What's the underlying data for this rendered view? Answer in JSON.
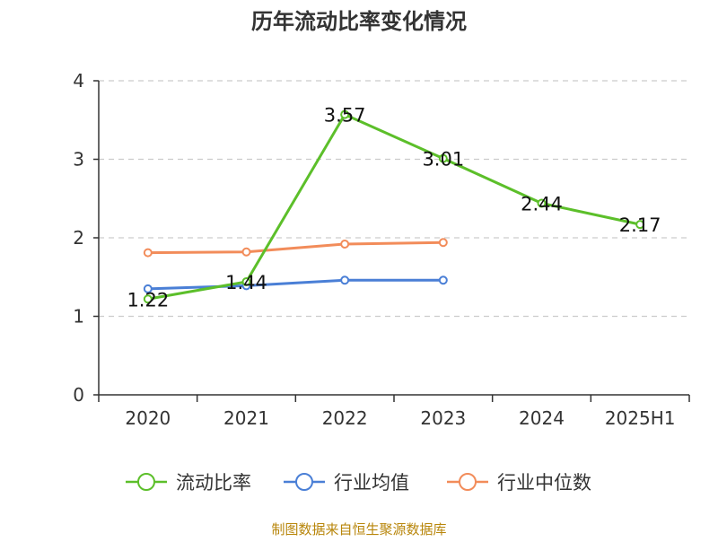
{
  "chart_data": {
    "type": "line",
    "title": "历年流动比率变化情况",
    "xlabel": "",
    "ylabel": "",
    "categories": [
      "2020",
      "2021",
      "2022",
      "2023",
      "2024",
      "2025H1"
    ],
    "ylim": [
      0,
      4
    ],
    "yticks": [
      0,
      1,
      2,
      3,
      4
    ],
    "grid": true,
    "legend_position": "bottom",
    "series": [
      {
        "name": "流动比率",
        "color": "#5cbf2a",
        "values": [
          1.22,
          1.44,
          3.57,
          3.01,
          2.44,
          2.17
        ],
        "labels": [
          "1.22",
          "1.44",
          "3.57",
          "3.01",
          "2.44",
          "2.17"
        ]
      },
      {
        "name": "行业均值",
        "color": "#4a7fd6",
        "values": [
          1.35,
          1.39,
          1.46,
          1.46,
          null,
          null
        ]
      },
      {
        "name": "行业中位数",
        "color": "#f28c5a",
        "values": [
          1.81,
          1.82,
          1.92,
          1.94,
          null,
          null
        ]
      }
    ]
  },
  "footer": {
    "source": "制图数据来自恒生聚源数据库"
  }
}
